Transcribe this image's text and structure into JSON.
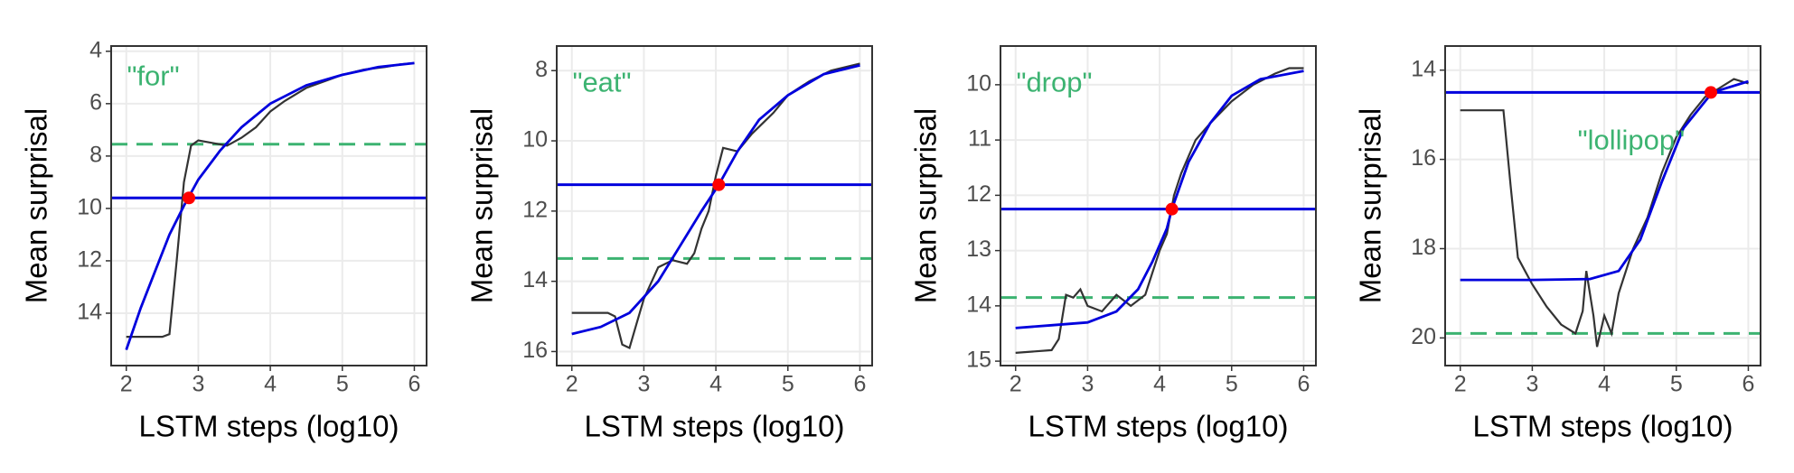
{
  "chart_data": [
    {
      "type": "line",
      "annotation": "\"for\"",
      "x_label": "LSTM steps (log10)",
      "y_label": "Mean surprisal",
      "xlim": [
        1.79,
        6.17
      ],
      "ylim": [
        16,
        3.8
      ],
      "xticks": [
        2,
        3,
        4,
        5,
        6
      ],
      "yticks": [
        4,
        6,
        8,
        10,
        12,
        14
      ],
      "y_reversed": true,
      "grid": true,
      "series": [
        {
          "color": "#333333",
          "x": [
            2.0,
            2.5,
            2.6,
            2.7,
            2.8,
            2.9,
            3.0,
            3.2,
            3.4,
            3.6,
            3.8,
            4.0,
            4.2,
            4.5,
            4.8,
            5.0,
            5.3,
            5.6,
            5.8,
            6.0
          ],
          "values": [
            14.9,
            14.9,
            14.8,
            12,
            9,
            7.6,
            7.4,
            7.5,
            7.6,
            7.3,
            6.9,
            6.3,
            5.9,
            5.4,
            5.1,
            4.9,
            4.7,
            4.6,
            4.5,
            4.45
          ]
        },
        {
          "color": "#0000dd",
          "x": [
            2.0,
            2.2,
            2.4,
            2.6,
            2.8,
            3.0,
            3.3,
            3.6,
            4.0,
            4.5,
            5.0,
            5.5,
            6.0
          ],
          "values": [
            15.4,
            13.8,
            12.4,
            11.0,
            9.9,
            8.9,
            7.8,
            6.9,
            6.0,
            5.3,
            4.9,
            4.6,
            4.45
          ]
        }
      ],
      "reference_lines": [
        {
          "value": 9.6,
          "color": "#0000dd",
          "style": "solid"
        },
        {
          "value": 7.55,
          "color": "#3cb371",
          "style": "dashed"
        }
      ],
      "points": [
        {
          "x": 2.87,
          "y": 9.6,
          "color": "#ff0000"
        }
      ]
    },
    {
      "type": "line",
      "annotation": "\"eat\"",
      "x_label": "LSTM steps (log10)",
      "y_label": "Mean surprisal",
      "xlim": [
        1.79,
        6.17
      ],
      "ylim": [
        16.4,
        7.3
      ],
      "xticks": [
        2,
        3,
        4,
        5,
        6
      ],
      "yticks": [
        8,
        10,
        12,
        14,
        16
      ],
      "y_reversed": true,
      "grid": true,
      "series": [
        {
          "color": "#333333",
          "x": [
            2.0,
            2.5,
            2.6,
            2.7,
            2.8,
            2.9,
            3.0,
            3.2,
            3.4,
            3.6,
            3.7,
            3.8,
            3.9,
            4.0,
            4.1,
            4.3,
            4.5,
            4.8,
            5.0,
            5.3,
            5.6,
            5.8,
            6.0
          ],
          "values": [
            14.9,
            14.9,
            15.0,
            15.8,
            15.9,
            15.2,
            14.5,
            13.6,
            13.4,
            13.5,
            13.2,
            12.5,
            12.0,
            11.0,
            10.2,
            10.3,
            9.8,
            9.2,
            8.7,
            8.3,
            8.0,
            7.9,
            7.8
          ]
        },
        {
          "color": "#0000dd",
          "x": [
            2.0,
            2.4,
            2.8,
            3.2,
            3.5,
            3.8,
            4.04,
            4.3,
            4.6,
            5.0,
            5.5,
            6.0
          ],
          "values": [
            15.5,
            15.3,
            14.9,
            14.0,
            13.0,
            12.0,
            11.25,
            10.3,
            9.4,
            8.7,
            8.1,
            7.85
          ]
        }
      ],
      "reference_lines": [
        {
          "value": 11.25,
          "color": "#0000dd",
          "style": "solid"
        },
        {
          "value": 13.35,
          "color": "#3cb371",
          "style": "dashed"
        }
      ],
      "points": [
        {
          "x": 4.04,
          "y": 11.25,
          "color": "#ff0000"
        }
      ]
    },
    {
      "type": "line",
      "annotation": "\"drop\"",
      "x_label": "LSTM steps (log10)",
      "y_label": "Mean surprisal",
      "xlim": [
        1.79,
        6.17
      ],
      "ylim": [
        15.08,
        9.3
      ],
      "xticks": [
        2,
        3,
        4,
        5,
        6
      ],
      "yticks": [
        10,
        11,
        12,
        13,
        14,
        15
      ],
      "y_reversed": true,
      "grid": true,
      "series": [
        {
          "color": "#333333",
          "x": [
            2.0,
            2.5,
            2.6,
            2.7,
            2.8,
            2.9,
            3.0,
            3.2,
            3.4,
            3.6,
            3.8,
            3.9,
            4.0,
            4.1,
            4.2,
            4.3,
            4.5,
            4.7,
            5.0,
            5.3,
            5.6,
            5.8,
            6.0
          ],
          "values": [
            14.85,
            14.8,
            14.6,
            13.8,
            13.85,
            13.7,
            14.0,
            14.1,
            13.8,
            14.0,
            13.8,
            13.4,
            13.0,
            12.7,
            12.0,
            11.6,
            11.0,
            10.7,
            10.3,
            10.0,
            9.8,
            9.7,
            9.7
          ]
        },
        {
          "color": "#0000dd",
          "x": [
            2.0,
            2.5,
            3.0,
            3.4,
            3.7,
            3.9,
            4.1,
            4.17,
            4.4,
            4.7,
            5.0,
            5.4,
            6.0
          ],
          "values": [
            14.4,
            14.35,
            14.3,
            14.1,
            13.7,
            13.2,
            12.6,
            12.25,
            11.4,
            10.7,
            10.2,
            9.9,
            9.75
          ]
        }
      ],
      "reference_lines": [
        {
          "value": 12.25,
          "color": "#0000dd",
          "style": "solid"
        },
        {
          "value": 13.85,
          "color": "#3cb371",
          "style": "dashed"
        }
      ],
      "points": [
        {
          "x": 4.17,
          "y": 12.25,
          "color": "#ff0000"
        }
      ]
    },
    {
      "type": "line",
      "annotation": "\"lollipop\"",
      "x_label": "LSTM steps (log10)",
      "y_label": "Mean surprisal",
      "xlim": [
        1.79,
        6.17
      ],
      "ylim": [
        20.62,
        13.46
      ],
      "xticks": [
        2,
        3,
        4,
        5,
        6
      ],
      "yticks": [
        14,
        16,
        18,
        20
      ],
      "y_reversed": true,
      "grid": true,
      "series": [
        {
          "color": "#333333",
          "x": [
            2.0,
            2.6,
            2.7,
            2.8,
            2.9,
            3.0,
            3.2,
            3.4,
            3.6,
            3.7,
            3.75,
            3.85,
            3.9,
            4.0,
            4.1,
            4.2,
            4.4,
            4.6,
            4.8,
            5.0,
            5.2,
            5.4,
            5.6,
            5.8,
            6.0
          ],
          "values": [
            14.9,
            14.9,
            16.6,
            18.2,
            18.5,
            18.8,
            19.3,
            19.7,
            19.9,
            19.4,
            18.5,
            19.5,
            20.2,
            19.5,
            19.9,
            19.0,
            18.0,
            17.3,
            16.3,
            15.5,
            15.0,
            14.6,
            14.4,
            14.2,
            14.3
          ]
        },
        {
          "color": "#0000dd",
          "x": [
            2.0,
            3.0,
            3.8,
            4.2,
            4.5,
            4.8,
            5.1,
            5.5,
            6.0
          ],
          "values": [
            18.7,
            18.7,
            18.68,
            18.5,
            17.8,
            16.5,
            15.3,
            14.5,
            14.25
          ]
        }
      ],
      "reference_lines": [
        {
          "value": 14.5,
          "color": "#0000dd",
          "style": "solid"
        },
        {
          "value": 19.9,
          "color": "#3cb371",
          "style": "dashed"
        }
      ],
      "points": [
        {
          "x": 5.48,
          "y": 14.5,
          "color": "#ff0000"
        }
      ]
    }
  ]
}
